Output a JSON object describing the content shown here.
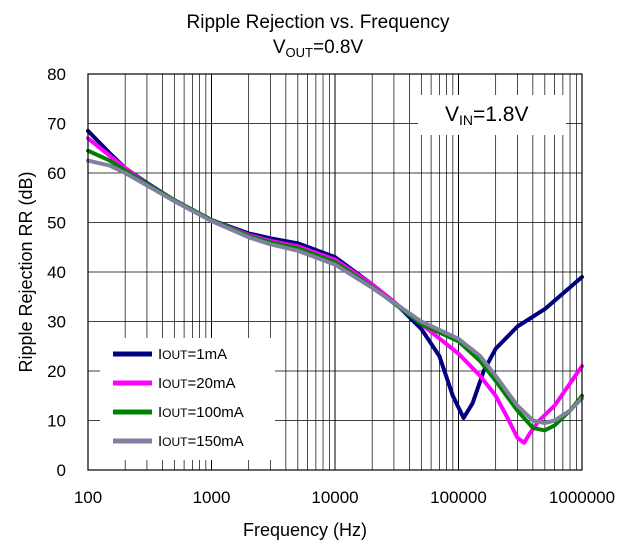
{
  "chart_data": {
    "type": "line",
    "title": "Ripple Rejection vs. Frequency",
    "subtitle": {
      "main": "V",
      "sub": "OUT",
      "rest": "=0.8V"
    },
    "annotation": {
      "main": "V",
      "sub": "IN",
      "rest": "=1.8V"
    },
    "xlabel": "Frequency (Hz)",
    "ylabel": "Ripple Rejection RR (dB)",
    "xscale": "log",
    "xlim": [
      100,
      1000000
    ],
    "ylim": [
      0,
      80
    ],
    "x_ticks": [
      "100",
      "1000",
      "10000",
      "100000",
      "1000000"
    ],
    "y_ticks": [
      "0",
      "10",
      "20",
      "30",
      "40",
      "50",
      "60",
      "70",
      "80"
    ],
    "grid": true,
    "legend_position": "bottom-left",
    "series": [
      {
        "name": "IOUT=1mA",
        "label_main": "I",
        "label_sub": "OUT",
        "label_rest": "=1mA",
        "color": "#000080",
        "points": [
          [
            100,
            68.5
          ],
          [
            150,
            64
          ],
          [
            200,
            61
          ],
          [
            300,
            58
          ],
          [
            500,
            54.5
          ],
          [
            1000,
            50.5
          ],
          [
            2000,
            47.8
          ],
          [
            3000,
            46.8
          ],
          [
            5000,
            45.8
          ],
          [
            10000,
            43
          ],
          [
            20000,
            37.5
          ],
          [
            30000,
            34
          ],
          [
            50000,
            28.5
          ],
          [
            70000,
            23
          ],
          [
            90000,
            15
          ],
          [
            110000,
            10.5
          ],
          [
            130000,
            13.5
          ],
          [
            160000,
            20
          ],
          [
            200000,
            24.5
          ],
          [
            300000,
            29
          ],
          [
            500000,
            32.5
          ],
          [
            1000000,
            39
          ]
        ]
      },
      {
        "name": "IOUT=20mA",
        "label_main": "I",
        "label_sub": "OUT",
        "label_rest": "=20mA",
        "color": "#ff00ff",
        "points": [
          [
            100,
            67
          ],
          [
            150,
            63.5
          ],
          [
            200,
            61
          ],
          [
            300,
            57.8
          ],
          [
            500,
            54.5
          ],
          [
            1000,
            50.5
          ],
          [
            2000,
            47.5
          ],
          [
            3000,
            46.3
          ],
          [
            5000,
            45.2
          ],
          [
            10000,
            42.5
          ],
          [
            20000,
            37.5
          ],
          [
            50000,
            29.5
          ],
          [
            100000,
            23.5
          ],
          [
            150000,
            19
          ],
          [
            200000,
            15
          ],
          [
            250000,
            10.5
          ],
          [
            300000,
            6.5
          ],
          [
            340000,
            5.5
          ],
          [
            380000,
            7.5
          ],
          [
            450000,
            10
          ],
          [
            600000,
            13
          ],
          [
            1000000,
            21
          ]
        ]
      },
      {
        "name": "IOUT=100mA",
        "label_main": "I",
        "label_sub": "OUT",
        "label_rest": "=100mA",
        "color": "#008000",
        "points": [
          [
            100,
            64.5
          ],
          [
            150,
            62.5
          ],
          [
            200,
            60.5
          ],
          [
            300,
            57.8
          ],
          [
            500,
            54.5
          ],
          [
            1000,
            50.5
          ],
          [
            2000,
            47.3
          ],
          [
            3000,
            46
          ],
          [
            5000,
            44.8
          ],
          [
            10000,
            42
          ],
          [
            20000,
            37
          ],
          [
            50000,
            29.5
          ],
          [
            100000,
            26
          ],
          [
            150000,
            22
          ],
          [
            200000,
            18
          ],
          [
            300000,
            12
          ],
          [
            400000,
            8.5
          ],
          [
            500000,
            8
          ],
          [
            600000,
            9
          ],
          [
            800000,
            12
          ],
          [
            1000000,
            15
          ]
        ]
      },
      {
        "name": "IOUT=150mA",
        "label_main": "I",
        "label_sub": "OUT",
        "label_rest": "=150mA",
        "color": "#8080a0",
        "points": [
          [
            100,
            62.5
          ],
          [
            150,
            61.5
          ],
          [
            200,
            60
          ],
          [
            300,
            57.5
          ],
          [
            500,
            54.3
          ],
          [
            1000,
            50.3
          ],
          [
            2000,
            47
          ],
          [
            3000,
            45.6
          ],
          [
            5000,
            44.3
          ],
          [
            10000,
            41.5
          ],
          [
            20000,
            36.8
          ],
          [
            50000,
            30
          ],
          [
            100000,
            26.5
          ],
          [
            150000,
            23
          ],
          [
            200000,
            19
          ],
          [
            300000,
            13
          ],
          [
            400000,
            10
          ],
          [
            500000,
            9.5
          ],
          [
            600000,
            10
          ],
          [
            800000,
            12
          ],
          [
            1000000,
            14.5
          ]
        ]
      }
    ]
  }
}
